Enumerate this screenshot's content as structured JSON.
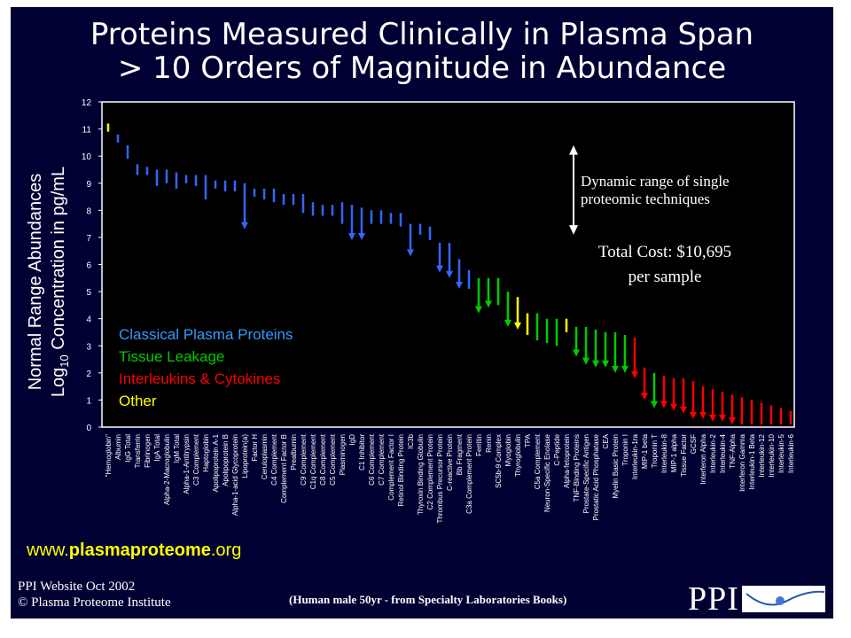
{
  "title": {
    "line1": "Proteins Measured Clinically in Plasma Span",
    "line2": "> 10 Orders of Magnitude in Abundance"
  },
  "colors": {
    "background": "#000033",
    "classical": "#3366ff",
    "tissue": "#00cc00",
    "interleukins": "#ff0000",
    "other": "#ffff00",
    "legend_classical_text": "#3399ff",
    "annotation_text": "#ffffff"
  },
  "footer": {
    "website_prefix": "www.",
    "website_bold": "plasmaproteome",
    "website_suffix": ".org",
    "date": "PPI Website Oct 2002",
    "copyright": "© Plasma Proteome Institute",
    "note": "(Human male 50yr - from Specialty Laboratories Books)",
    "logo_text": "PPI"
  },
  "chart_data": {
    "type": "range-bar",
    "ylabel_line1": "Normal Range Abundances",
    "ylabel_line2_pre": "Log",
    "ylabel_line2_sub": "10",
    "ylabel_line2_post": " Concentration in pg/mL",
    "ylim": [
      0,
      12
    ],
    "yticks": [
      "0",
      "1",
      "2",
      "3",
      "4",
      "5",
      "6",
      "7",
      "8",
      "9",
      "10",
      "11",
      "12"
    ],
    "legend": [
      {
        "label": "Classical Plasma Proteins",
        "group": "classical"
      },
      {
        "label": "Tissue Leakage",
        "group": "tissue"
      },
      {
        "label": "Interleukins & Cytokines",
        "group": "interleukins"
      },
      {
        "label": "Other",
        "group": "other"
      }
    ],
    "annotation": {
      "dynamic_range_line1": "Dynamic range of single",
      "dynamic_range_line2": "proteomic techniques",
      "cost_line1": "Total Cost: $10,695",
      "cost_line2": "per sample"
    },
    "proteins": [
      {
        "name": "\"Hemoglobin\"",
        "low": 10.9,
        "high": 11.2,
        "group": "other"
      },
      {
        "name": "Albumin",
        "low": 10.5,
        "high": 10.8,
        "group": "classical"
      },
      {
        "name": "IgG Total",
        "low": 9.9,
        "high": 10.4,
        "group": "classical"
      },
      {
        "name": "Transferrin",
        "low": 9.3,
        "high": 9.7,
        "group": "classical"
      },
      {
        "name": "Fibrinogen",
        "low": 9.3,
        "high": 9.6,
        "group": "classical"
      },
      {
        "name": "IgA Total",
        "low": 8.9,
        "high": 9.5,
        "group": "classical"
      },
      {
        "name": "Alpha-2-Macroglobulin",
        "low": 9.0,
        "high": 9.5,
        "group": "classical"
      },
      {
        "name": "IgM Total",
        "low": 8.8,
        "high": 9.4,
        "group": "classical"
      },
      {
        "name": "Alpha-1-Antitrypsin",
        "low": 9.0,
        "high": 9.3,
        "group": "classical"
      },
      {
        "name": "C3 Complement",
        "low": 8.9,
        "high": 9.3,
        "group": "classical"
      },
      {
        "name": "Haptoglobin",
        "low": 8.4,
        "high": 9.3,
        "group": "classical"
      },
      {
        "name": "Apolipoprotein A-1",
        "low": 8.8,
        "high": 9.1,
        "group": "classical"
      },
      {
        "name": "Apolipoprotein B",
        "low": 8.7,
        "high": 9.1,
        "group": "classical"
      },
      {
        "name": "Alpha-1-acid Glycoprotein",
        "low": 8.7,
        "high": 9.1,
        "group": "classical"
      },
      {
        "name": "Lipoprotein(a)",
        "low": 7.3,
        "high": 9.0,
        "group": "classical"
      },
      {
        "name": "Factor H",
        "low": 8.5,
        "high": 8.8,
        "group": "classical"
      },
      {
        "name": "Ceruloplasmin",
        "low": 8.4,
        "high": 8.8,
        "group": "classical"
      },
      {
        "name": "C4 Complement",
        "low": 8.3,
        "high": 8.8,
        "group": "classical"
      },
      {
        "name": "Complement Factor B",
        "low": 8.2,
        "high": 8.6,
        "group": "classical"
      },
      {
        "name": "Prealbumin",
        "low": 8.2,
        "high": 8.6,
        "group": "classical"
      },
      {
        "name": "C9 Complement",
        "low": 7.9,
        "high": 8.6,
        "group": "classical"
      },
      {
        "name": "C1q Complement",
        "low": 7.8,
        "high": 8.3,
        "group": "classical"
      },
      {
        "name": "C8 Complement",
        "low": 7.8,
        "high": 8.2,
        "group": "classical"
      },
      {
        "name": "C5 Complement",
        "low": 7.8,
        "high": 8.2,
        "group": "classical"
      },
      {
        "name": "Plasminogen",
        "low": 7.5,
        "high": 8.3,
        "group": "classical"
      },
      {
        "name": "IgD",
        "low": 6.9,
        "high": 8.2,
        "group": "classical"
      },
      {
        "name": "C1 Inhibitor",
        "low": 6.9,
        "high": 8.1,
        "group": "classical"
      },
      {
        "name": "C6 Complement",
        "low": 7.5,
        "high": 8.0,
        "group": "classical"
      },
      {
        "name": "C7 Complement",
        "low": 7.5,
        "high": 8.0,
        "group": "classical"
      },
      {
        "name": "Complement Factor I",
        "low": 7.5,
        "high": 7.9,
        "group": "classical"
      },
      {
        "name": "Retinol Binding Protein",
        "low": 7.4,
        "high": 7.9,
        "group": "classical"
      },
      {
        "name": "IC3b",
        "low": 6.3,
        "high": 7.5,
        "group": "classical"
      },
      {
        "name": "Thyroxin Binding Globulin",
        "low": 7.1,
        "high": 7.5,
        "group": "classical"
      },
      {
        "name": "C2 Complement Protein",
        "low": 6.9,
        "high": 7.4,
        "group": "classical"
      },
      {
        "name": "Thrombus Precursor Protein",
        "low": 5.7,
        "high": 6.8,
        "group": "classical"
      },
      {
        "name": "C-reactive Protein",
        "low": 5.5,
        "high": 6.8,
        "group": "classical"
      },
      {
        "name": "Bb Fragment",
        "low": 5.1,
        "high": 6.2,
        "group": "classical"
      },
      {
        "name": "C3a Complement Protein",
        "low": 5.1,
        "high": 5.8,
        "group": "classical"
      },
      {
        "name": "Ferritin",
        "low": 4.2,
        "high": 5.5,
        "group": "tissue"
      },
      {
        "name": "Renin",
        "low": 4.4,
        "high": 5.5,
        "group": "tissue"
      },
      {
        "name": "SC5b-9 Complex",
        "low": 4.5,
        "high": 5.5,
        "group": "tissue"
      },
      {
        "name": "Myoglobin",
        "low": 3.7,
        "high": 5.0,
        "group": "tissue"
      },
      {
        "name": "Thyroglobulin",
        "low": 3.6,
        "high": 4.8,
        "group": "other"
      },
      {
        "name": "TPA",
        "low": 3.4,
        "high": 4.2,
        "group": "other"
      },
      {
        "name": "C5a Complement",
        "low": 3.2,
        "high": 4.2,
        "group": "tissue"
      },
      {
        "name": "Neuron-Specific Enolase",
        "low": 3.1,
        "high": 4.0,
        "group": "tissue"
      },
      {
        "name": "C-Peptide",
        "low": 3.0,
        "high": 4.0,
        "group": "tissue"
      },
      {
        "name": "Alpha-fetoprotein",
        "low": 3.5,
        "high": 4.0,
        "group": "other"
      },
      {
        "name": "TNF-Binding Proteins",
        "low": 2.6,
        "high": 3.7,
        "group": "tissue"
      },
      {
        "name": "Prostate-Specific Antigen",
        "low": 2.3,
        "high": 3.7,
        "group": "tissue"
      },
      {
        "name": "Prostatic Acid Phosphatase",
        "low": 2.2,
        "high": 3.6,
        "group": "tissue"
      },
      {
        "name": "CEA",
        "low": 2.2,
        "high": 3.5,
        "group": "tissue"
      },
      {
        "name": "Myelin Basic Protein",
        "low": 2.0,
        "high": 3.5,
        "group": "tissue"
      },
      {
        "name": "Troponin I",
        "low": 2.0,
        "high": 3.4,
        "group": "tissue"
      },
      {
        "name": "Interleukin-1ra",
        "low": 1.8,
        "high": 3.3,
        "group": "interleukins"
      },
      {
        "name": "MIP-1 beta",
        "low": 1.0,
        "high": 2.2,
        "group": "interleukins"
      },
      {
        "name": "Troponin T",
        "low": 0.7,
        "high": 2.0,
        "group": "tissue"
      },
      {
        "name": "Interleukin-8",
        "low": 0.7,
        "high": 1.9,
        "group": "interleukins"
      },
      {
        "name": "MIP-1 alpha",
        "low": 0.6,
        "high": 1.8,
        "group": "interleukins"
      },
      {
        "name": "Tissue Factor",
        "low": 0.5,
        "high": 1.8,
        "group": "interleukins"
      },
      {
        "name": "GCSF",
        "low": 0.3,
        "high": 1.7,
        "group": "interleukins"
      },
      {
        "name": "Interferon Alpha",
        "low": 0.3,
        "high": 1.5,
        "group": "interleukins"
      },
      {
        "name": "Interleukin-2",
        "low": 0.2,
        "high": 1.4,
        "group": "interleukins"
      },
      {
        "name": "Interleukin-4",
        "low": 0.2,
        "high": 1.3,
        "group": "interleukins"
      },
      {
        "name": "TNF-Alpha",
        "low": 0.1,
        "high": 1.2,
        "group": "interleukins"
      },
      {
        "name": "Interferon Gamma",
        "low": 0.1,
        "high": 1.1,
        "group": "interleukins"
      },
      {
        "name": "Interleukin-1 Beta",
        "low": 0.1,
        "high": 1.0,
        "group": "interleukins"
      },
      {
        "name": "Interleukin-12",
        "low": 0.1,
        "high": 0.9,
        "group": "interleukins"
      },
      {
        "name": "Interleukin-10",
        "low": 0.1,
        "high": 0.8,
        "group": "interleukins"
      },
      {
        "name": "Interleukin-5",
        "low": 0.1,
        "high": 0.7,
        "group": "interleukins"
      },
      {
        "name": "Interleukin-6",
        "low": 0.1,
        "high": 0.6,
        "group": "interleukins"
      }
    ]
  }
}
